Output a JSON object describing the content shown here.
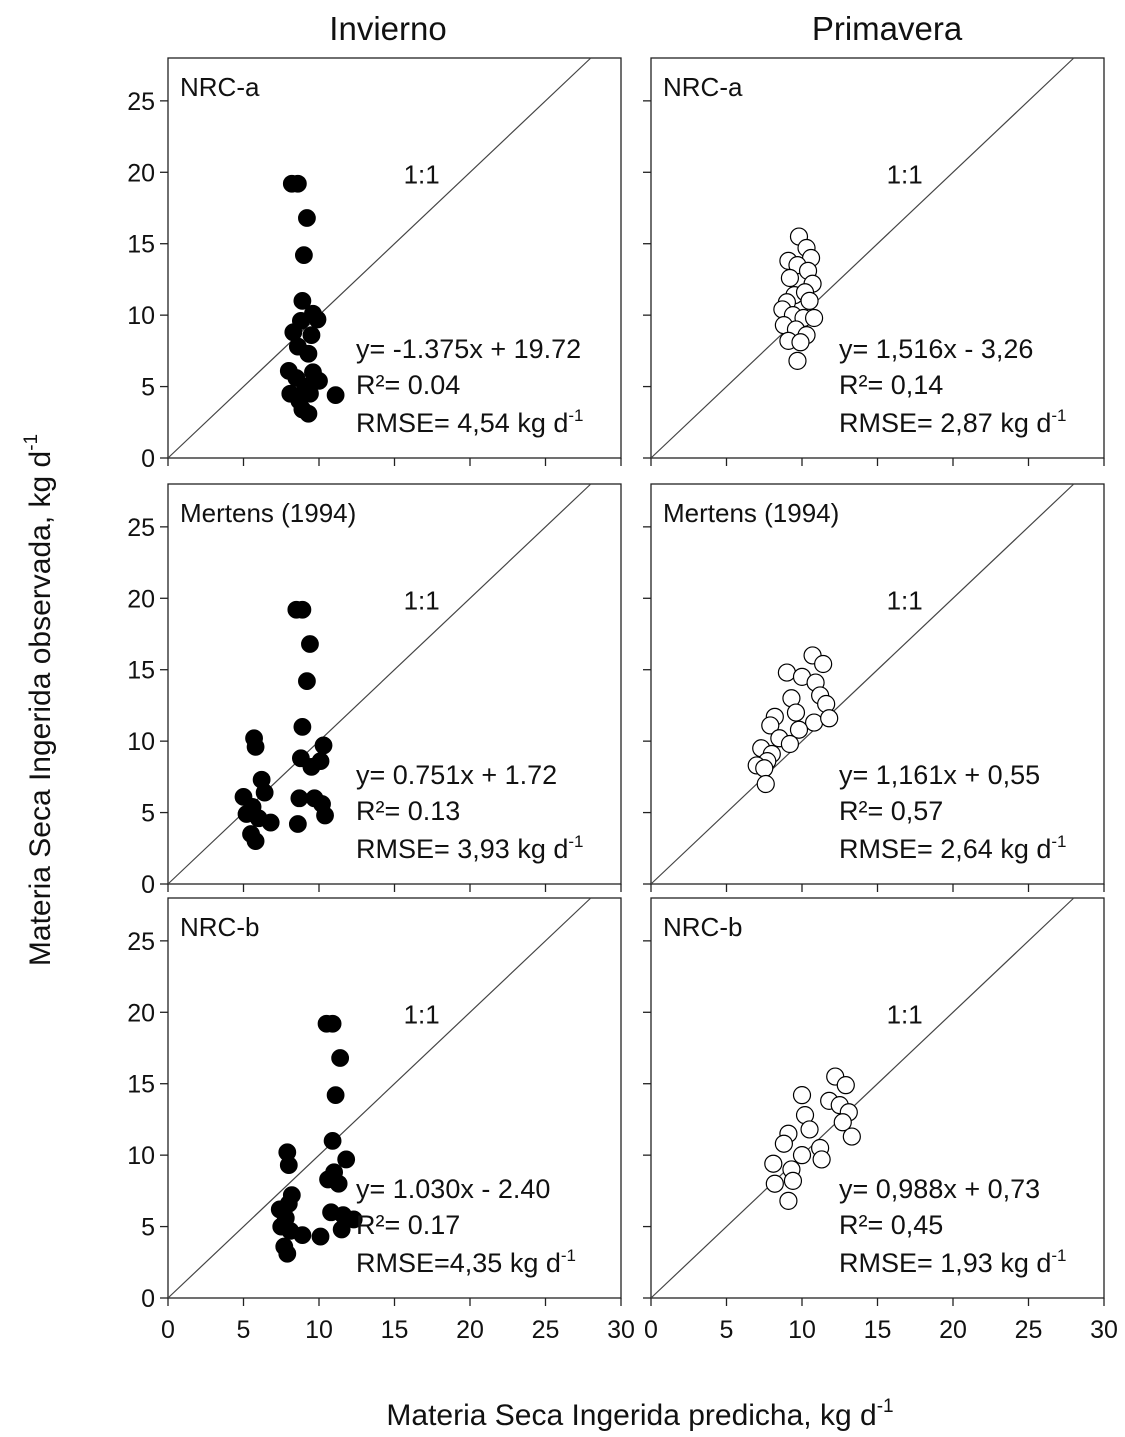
{
  "figure": {
    "column_titles": [
      "Invierno",
      "Primavera"
    ],
    "xlabel": "Materia Seca Ingerida predicha, kg d",
    "xlabel_sup": "-1",
    "ylabel": "Materia Seca Ingerida observada, kg d",
    "ylabel_sup": "-1",
    "identity_label": "1:1",
    "colors": {
      "invierno_marker": "#000000",
      "primavera_marker": "#ffffff",
      "line": "#444444"
    }
  },
  "chart_data": [
    {
      "type": "scatter",
      "season": "Invierno",
      "model": "NRC-a",
      "marker": "filled",
      "xlim": [
        0,
        30
      ],
      "ylim": [
        0,
        28
      ],
      "xticks": [
        0,
        5,
        10,
        15,
        20,
        25,
        30
      ],
      "yticks": [
        0,
        5,
        10,
        15,
        20,
        25
      ],
      "show_xticklabels": false,
      "show_yticklabels": true,
      "identity_label": "1:1",
      "equation": "y= -1.375x + 19.72",
      "r2": "R²= 0.04",
      "rmse": "RMSE= 4,54 kg d",
      "rmse_sup": "-1",
      "points": [
        [
          8.2,
          19.2
        ],
        [
          8.6,
          19.2
        ],
        [
          9.2,
          16.8
        ],
        [
          9.0,
          14.2
        ],
        [
          8.9,
          11.0
        ],
        [
          9.6,
          10.1
        ],
        [
          8.8,
          9.6
        ],
        [
          9.9,
          9.7
        ],
        [
          8.3,
          8.8
        ],
        [
          9.5,
          8.6
        ],
        [
          8.6,
          7.8
        ],
        [
          9.3,
          7.3
        ],
        [
          8.0,
          6.1
        ],
        [
          9.6,
          6.0
        ],
        [
          8.5,
          5.6
        ],
        [
          9.1,
          5.0
        ],
        [
          10.0,
          5.4
        ],
        [
          8.1,
          4.5
        ],
        [
          8.7,
          4.0
        ],
        [
          9.4,
          4.5
        ],
        [
          8.9,
          3.4
        ],
        [
          9.3,
          3.1
        ],
        [
          11.1,
          4.4
        ]
      ]
    },
    {
      "type": "scatter",
      "season": "Primavera",
      "model": "NRC-a",
      "marker": "open",
      "xlim": [
        0,
        30
      ],
      "ylim": [
        0,
        28
      ],
      "xticks": [
        0,
        5,
        10,
        15,
        20,
        25,
        30
      ],
      "yticks": [
        0,
        5,
        10,
        15,
        20,
        25
      ],
      "show_xticklabels": false,
      "show_yticklabels": false,
      "identity_label": "1:1",
      "equation": "y= 1,516x - 3,26",
      "r2": "R²= 0,14",
      "rmse": "RMSE= 2,87 kg d",
      "rmse_sup": "-1",
      "points": [
        [
          9.8,
          15.5
        ],
        [
          10.3,
          14.7
        ],
        [
          10.6,
          14.0
        ],
        [
          9.1,
          13.8
        ],
        [
          9.7,
          13.5
        ],
        [
          10.4,
          13.1
        ],
        [
          9.2,
          12.6
        ],
        [
          10.7,
          12.2
        ],
        [
          9.5,
          11.4
        ],
        [
          10.2,
          11.6
        ],
        [
          9.0,
          10.9
        ],
        [
          10.5,
          11.0
        ],
        [
          8.7,
          10.4
        ],
        [
          9.4,
          10.0
        ],
        [
          10.1,
          9.8
        ],
        [
          10.8,
          9.8
        ],
        [
          8.8,
          9.3
        ],
        [
          9.6,
          9.0
        ],
        [
          10.3,
          8.6
        ],
        [
          9.1,
          8.2
        ],
        [
          9.9,
          8.1
        ],
        [
          9.7,
          6.8
        ]
      ]
    },
    {
      "type": "scatter",
      "season": "Invierno",
      "model": "Mertens (1994)",
      "marker": "filled",
      "xlim": [
        0,
        30
      ],
      "ylim": [
        0,
        28
      ],
      "xticks": [
        0,
        5,
        10,
        15,
        20,
        25,
        30
      ],
      "yticks": [
        0,
        5,
        10,
        15,
        20,
        25
      ],
      "show_xticklabels": false,
      "show_yticklabels": true,
      "identity_label": "1:1",
      "equation": "y= 0.751x + 1.72",
      "r2": "R²= 0.13",
      "rmse": "RMSE= 3,93 kg d",
      "rmse_sup": "-1",
      "points": [
        [
          8.5,
          19.2
        ],
        [
          8.9,
          19.2
        ],
        [
          9.4,
          16.8
        ],
        [
          9.2,
          14.2
        ],
        [
          8.9,
          11.0
        ],
        [
          5.7,
          10.2
        ],
        [
          5.8,
          9.6
        ],
        [
          10.3,
          9.7
        ],
        [
          6.2,
          7.3
        ],
        [
          6.4,
          6.4
        ],
        [
          8.8,
          8.8
        ],
        [
          9.5,
          8.2
        ],
        [
          10.1,
          8.6
        ],
        [
          5.0,
          6.1
        ],
        [
          5.6,
          5.4
        ],
        [
          8.7,
          6.0
        ],
        [
          9.7,
          6.0
        ],
        [
          10.2,
          5.6
        ],
        [
          5.2,
          4.9
        ],
        [
          6.0,
          4.6
        ],
        [
          6.8,
          4.3
        ],
        [
          8.6,
          4.2
        ],
        [
          5.5,
          3.5
        ],
        [
          5.8,
          3.0
        ],
        [
          10.4,
          4.8
        ]
      ]
    },
    {
      "type": "scatter",
      "season": "Primavera",
      "model": "Mertens (1994)",
      "marker": "open",
      "xlim": [
        0,
        30
      ],
      "ylim": [
        0,
        28
      ],
      "xticks": [
        0,
        5,
        10,
        15,
        20,
        25,
        30
      ],
      "yticks": [
        0,
        5,
        10,
        15,
        20,
        25
      ],
      "show_xticklabels": false,
      "show_yticklabels": false,
      "identity_label": "1:1",
      "equation": "y= 1,161x + 0,55",
      "r2": "R²= 0,57",
      "rmse": "RMSE= 2,64 kg d",
      "rmse_sup": "-1",
      "points": [
        [
          10.7,
          16.0
        ],
        [
          11.4,
          15.4
        ],
        [
          9.0,
          14.8
        ],
        [
          10.0,
          14.5
        ],
        [
          10.9,
          14.1
        ],
        [
          11.2,
          13.2
        ],
        [
          9.3,
          13.0
        ],
        [
          11.6,
          12.6
        ],
        [
          9.6,
          12.0
        ],
        [
          8.2,
          11.7
        ],
        [
          10.8,
          11.3
        ],
        [
          7.9,
          11.1
        ],
        [
          11.8,
          11.6
        ],
        [
          9.8,
          10.8
        ],
        [
          8.5,
          10.2
        ],
        [
          9.2,
          9.8
        ],
        [
          7.3,
          9.5
        ],
        [
          8.0,
          9.1
        ],
        [
          7.7,
          8.6
        ],
        [
          7.0,
          8.3
        ],
        [
          7.5,
          8.1
        ],
        [
          7.6,
          7.0
        ]
      ]
    },
    {
      "type": "scatter",
      "season": "Invierno",
      "model": "NRC-b",
      "marker": "filled",
      "xlim": [
        0,
        30
      ],
      "ylim": [
        0,
        28
      ],
      "xticks": [
        0,
        5,
        10,
        15,
        20,
        25,
        30
      ],
      "yticks": [
        0,
        5,
        10,
        15,
        20,
        25
      ],
      "show_xticklabels": true,
      "show_yticklabels": true,
      "identity_label": "1:1",
      "equation": "y= 1.030x - 2.40",
      "r2": "R²= 0.17",
      "rmse": "RMSE=4,35 kg d",
      "rmse_sup": "-1",
      "points": [
        [
          10.5,
          19.2
        ],
        [
          10.9,
          19.2
        ],
        [
          11.4,
          16.8
        ],
        [
          11.1,
          14.2
        ],
        [
          10.9,
          11.0
        ],
        [
          7.9,
          10.2
        ],
        [
          8.0,
          9.3
        ],
        [
          11.8,
          9.7
        ],
        [
          8.2,
          7.2
        ],
        [
          8.0,
          6.6
        ],
        [
          10.6,
          8.3
        ],
        [
          11.3,
          8.0
        ],
        [
          11.0,
          8.8
        ],
        [
          7.4,
          6.2
        ],
        [
          7.8,
          5.6
        ],
        [
          10.8,
          6.0
        ],
        [
          11.6,
          5.8
        ],
        [
          12.3,
          5.5
        ],
        [
          7.5,
          5.0
        ],
        [
          8.1,
          4.7
        ],
        [
          8.9,
          4.4
        ],
        [
          10.1,
          4.3
        ],
        [
          7.7,
          3.6
        ],
        [
          7.9,
          3.1
        ],
        [
          11.5,
          4.8
        ]
      ]
    },
    {
      "type": "scatter",
      "season": "Primavera",
      "model": "NRC-b",
      "marker": "open",
      "xlim": [
        0,
        30
      ],
      "ylim": [
        0,
        28
      ],
      "xticks": [
        0,
        5,
        10,
        15,
        20,
        25,
        30
      ],
      "yticks": [
        0,
        5,
        10,
        15,
        20,
        25
      ],
      "show_xticklabels": true,
      "show_yticklabels": false,
      "identity_label": "1:1",
      "equation": "y= 0,988x + 0,73",
      "r2": "R²= 0,45",
      "rmse": "RMSE= 1,93 kg d",
      "rmse_sup": "-1",
      "points": [
        [
          12.2,
          15.5
        ],
        [
          12.9,
          14.9
        ],
        [
          10.0,
          14.2
        ],
        [
          11.8,
          13.8
        ],
        [
          12.5,
          13.5
        ],
        [
          13.1,
          13.0
        ],
        [
          10.2,
          12.8
        ],
        [
          12.7,
          12.3
        ],
        [
          9.1,
          11.5
        ],
        [
          10.5,
          11.8
        ],
        [
          13.3,
          11.3
        ],
        [
          8.8,
          10.8
        ],
        [
          11.2,
          10.5
        ],
        [
          10.0,
          10.0
        ],
        [
          11.3,
          9.7
        ],
        [
          8.1,
          9.4
        ],
        [
          9.3,
          9.0
        ],
        [
          8.2,
          8.0
        ],
        [
          9.4,
          8.2
        ],
        [
          9.1,
          6.8
        ]
      ]
    }
  ]
}
